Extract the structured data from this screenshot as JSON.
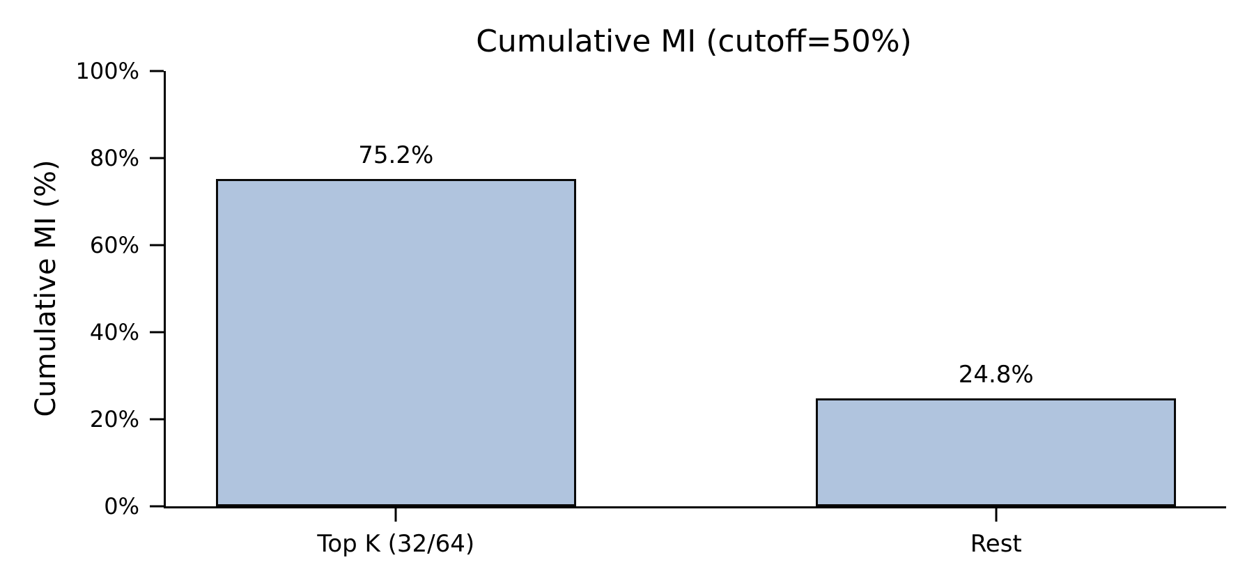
{
  "figure": {
    "background_color": "#ffffff",
    "text_color": "#000000"
  },
  "chart_data": {
    "type": "bar",
    "title": "Cumulative MI (cutoff=50%)",
    "xlabel": "",
    "ylabel": "Cumulative MI (%)",
    "categories": [
      "Top K (32/64)",
      "Rest"
    ],
    "values": [
      75.2,
      24.8
    ],
    "value_labels": [
      "75.2%",
      "24.8%"
    ],
    "ylim": [
      0,
      100
    ],
    "yticks": [
      "0%",
      "20%",
      "40%",
      "60%",
      "80%",
      "100%"
    ],
    "grid": false,
    "legend": null,
    "bar_fill_color": "#b0c4de",
    "bar_edge_color": "#0a0a0a",
    "axis_color": "#000000",
    "layout": {
      "bar_centers_frac": [
        0.217,
        0.783
      ],
      "bar_width_frac": 0.34
    }
  }
}
